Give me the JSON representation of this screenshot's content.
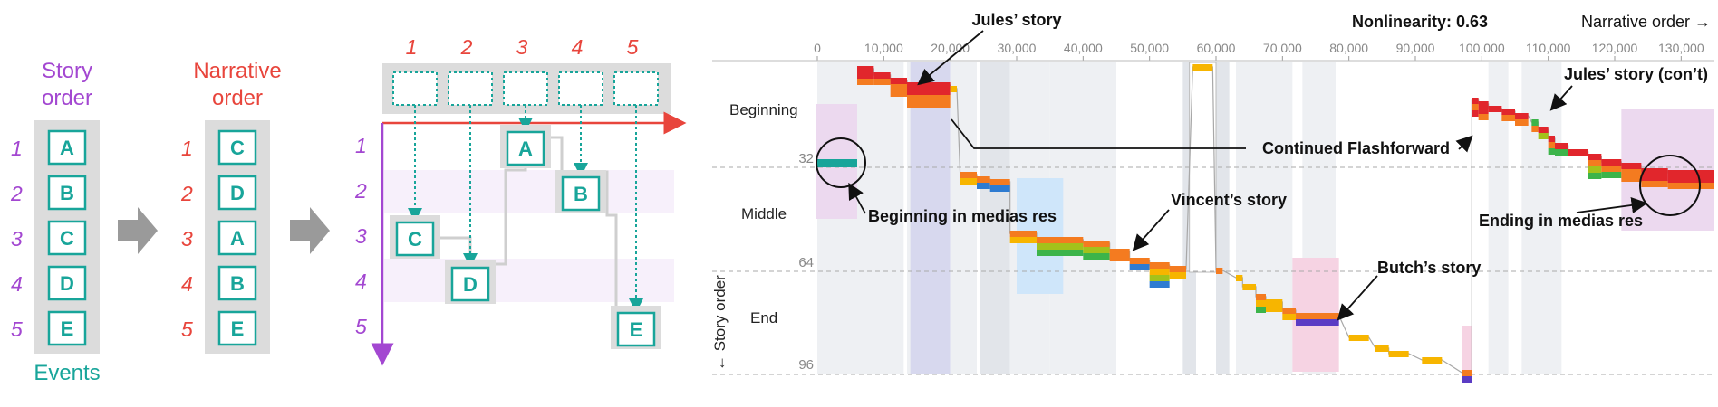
{
  "left": {
    "story_order_label": [
      "Story",
      "order"
    ],
    "narrative_order_label": [
      "Narrative",
      "order"
    ],
    "events_label": "Events",
    "story_events": [
      "A",
      "B",
      "C",
      "D",
      "E"
    ],
    "narrative_events": [
      "C",
      "D",
      "A",
      "B",
      "E"
    ],
    "row_indices": [
      "1",
      "2",
      "3",
      "4",
      "5"
    ],
    "col_indices": [
      "1",
      "2",
      "3",
      "4",
      "5"
    ],
    "matrix_events": [
      "A",
      "B",
      "C",
      "D",
      "E"
    ]
  },
  "right": {
    "nonlinearity_label": "Nonlinearity: 0.63",
    "narrative_axis_label": "Narrative order →",
    "story_axis_label": "← Story order",
    "x_ticks": [
      "0",
      "10,000",
      "20,000",
      "30,000",
      "40,000",
      "50,000",
      "60,000",
      "70,000",
      "80,000",
      "90,000",
      "100,000",
      "110,000",
      "120,000",
      "130,000"
    ],
    "y_ticks": [
      "32",
      "64",
      "96"
    ],
    "sections": [
      "Beginning",
      "Middle",
      "End"
    ],
    "annotations": {
      "jules": "Jules’ story",
      "jules_cont": "Jules’ story (con’t)",
      "continued": "Continued Flashforward",
      "beginning_mr": "Beginning in medias res",
      "vincent": "Vincent’s story",
      "ending_mr": "Ending in medias res",
      "butch": "Butch’s story"
    }
  },
  "colors": {
    "purple": "#a347d1",
    "red": "#e8453c",
    "teal": "#18a59a",
    "c_red": "#e1262c",
    "c_orange": "#f47b20",
    "c_yellow": "#f7b500",
    "c_green": "#3cb44a",
    "c_olive": "#a3c21b",
    "c_blue": "#2e7bd1",
    "c_indigo": "#5b3cc4"
  }
}
